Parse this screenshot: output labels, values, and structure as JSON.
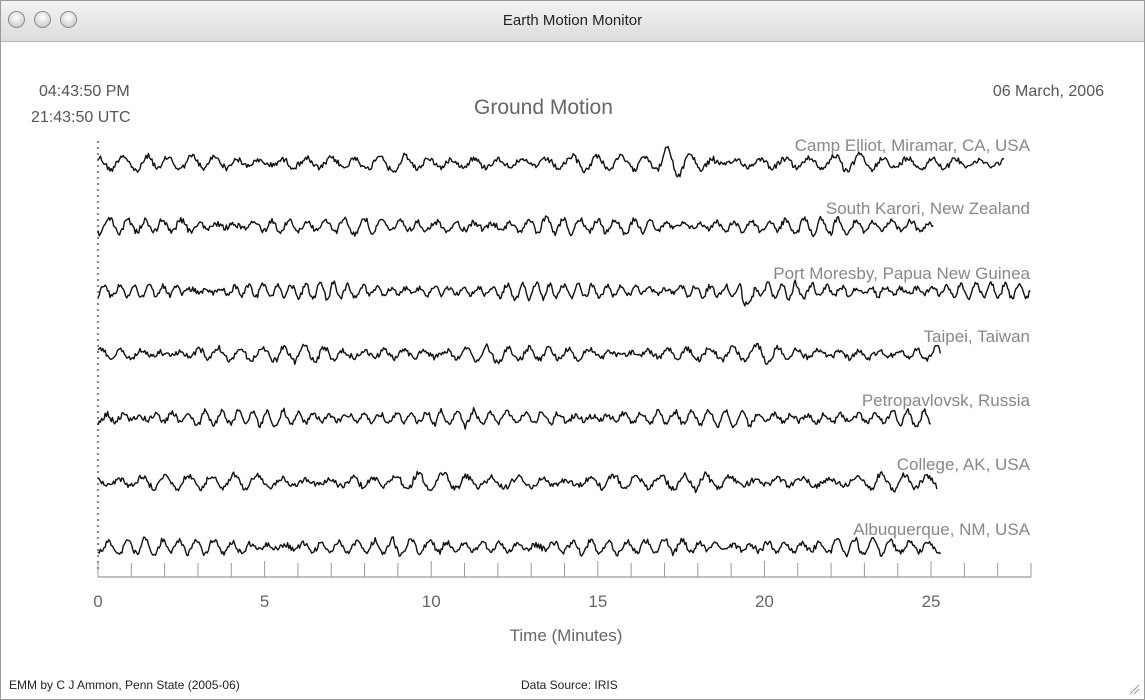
{
  "window": {
    "title": "Earth Motion Monitor"
  },
  "header": {
    "local_time": "04:43:50 PM",
    "utc_time": "21:43:50 UTC",
    "date": "06 March, 2006"
  },
  "footer": {
    "credit": "EMM by C J Ammon, Penn State (2005-06)",
    "source": "Data Source: IRIS"
  },
  "chart_data": {
    "type": "line",
    "title": "Ground Motion",
    "xlabel": "Time (Minutes)",
    "ylabel": "",
    "xlim": [
      0,
      28
    ],
    "x_ticks": [
      0,
      5,
      10,
      15,
      20,
      25
    ],
    "minor_tick_interval": 1,
    "grid": false,
    "series": [
      {
        "name": "Camp Elliot, Miramar, CA, USA",
        "x_end": 27.2,
        "burst_at": 17.7
      },
      {
        "name": "South Karori, New Zealand",
        "x_end": 25.1
      },
      {
        "name": "Port Moresby, Papua New Guinea",
        "x_end": 28.0,
        "step_at": 19.5
      },
      {
        "name": "Taipei, Taiwan",
        "x_end": 25.3
      },
      {
        "name": "Petropavlovsk, Russia",
        "x_end": 25.0
      },
      {
        "name": "College, AK, USA",
        "x_end": 25.2
      },
      {
        "name": "Albuquerque, NM, USA",
        "x_end": 25.3
      }
    ],
    "colors": {
      "trace": "#111111",
      "label": "#888888",
      "axis": "#999999"
    }
  }
}
